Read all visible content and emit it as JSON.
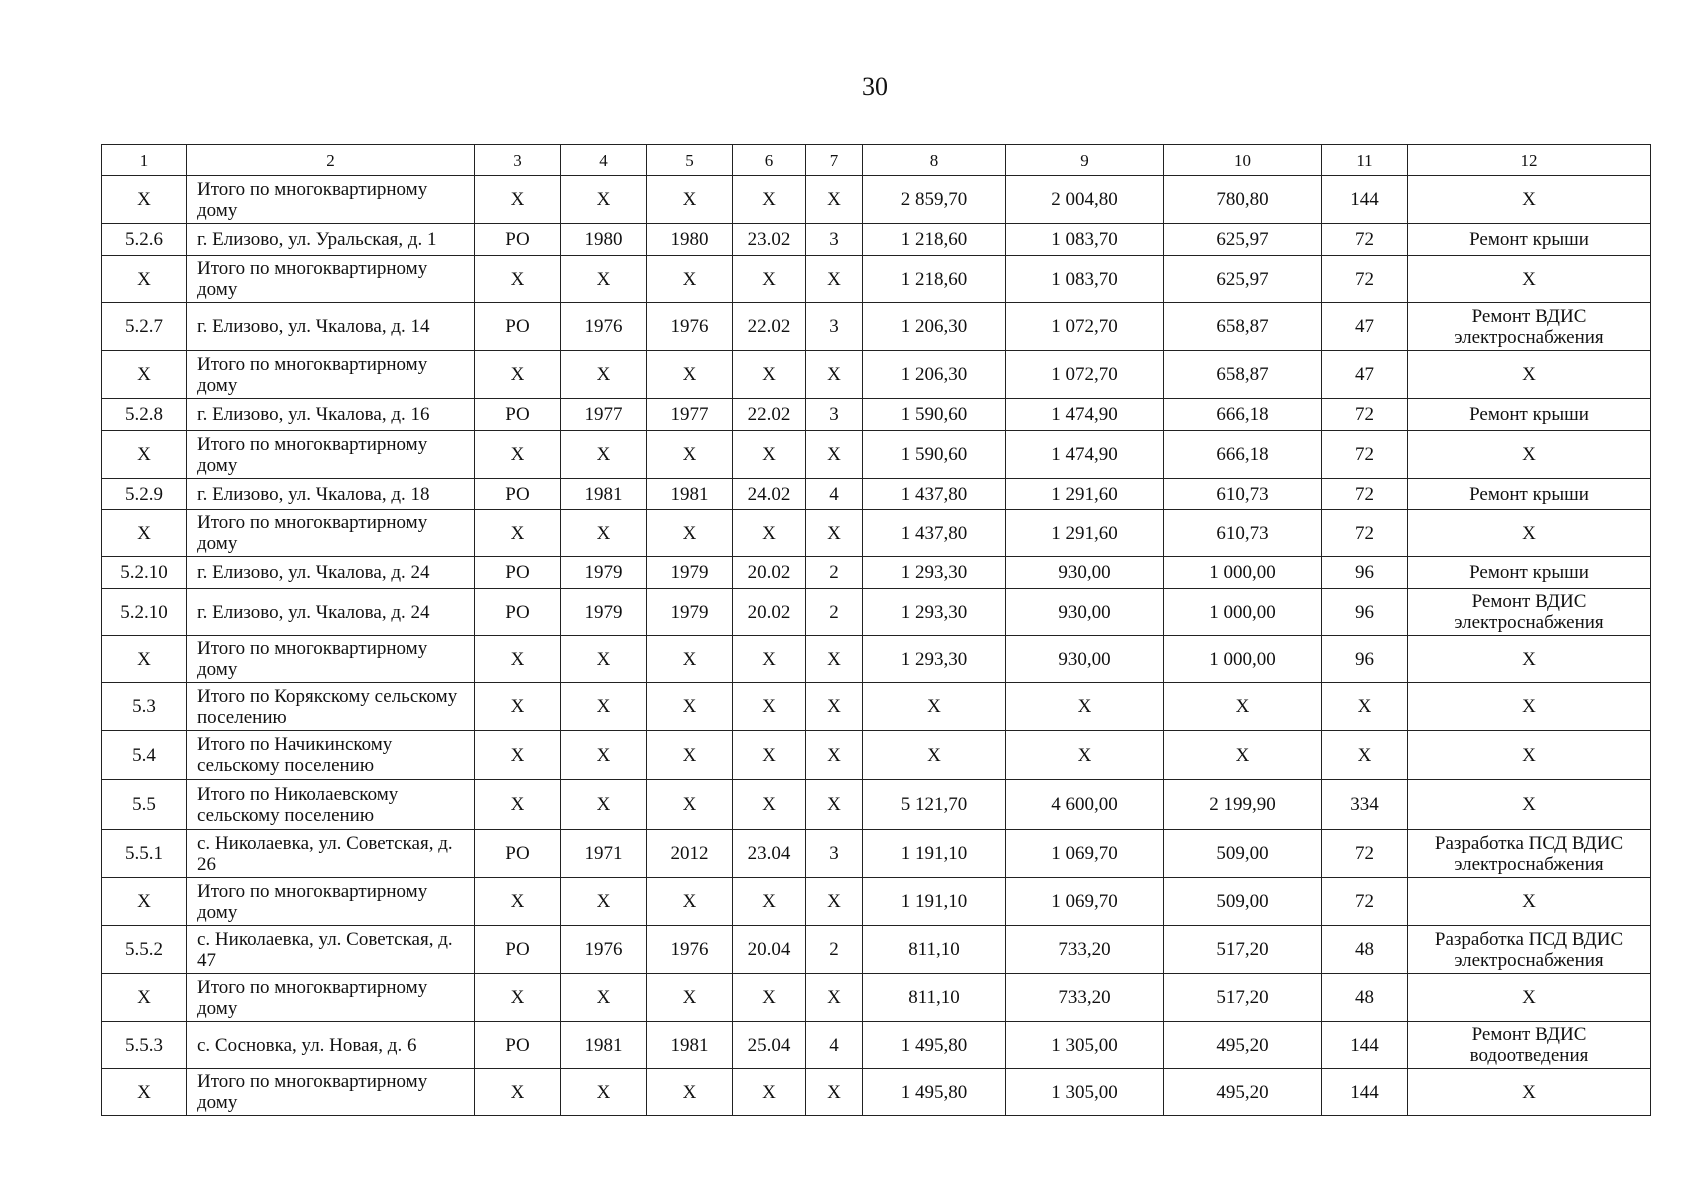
{
  "page_number": "30",
  "columns": [
    "1",
    "2",
    "3",
    "4",
    "5",
    "6",
    "7",
    "8",
    "9",
    "10",
    "11",
    "12"
  ],
  "rows": [
    [
      "Х",
      "Итого по многоквартирному дому",
      "Х",
      "Х",
      "Х",
      "Х",
      "Х",
      "2 859,70",
      "2 004,80",
      "780,80",
      "144",
      "Х"
    ],
    [
      "5.2.6",
      "г. Елизово, ул. Уральская, д. 1",
      "РО",
      "1980",
      "1980",
      "23.02",
      "3",
      "1 218,60",
      "1 083,70",
      "625,97",
      "72",
      "Ремонт крыши"
    ],
    [
      "Х",
      "Итого по многоквартирному дому",
      "Х",
      "Х",
      "Х",
      "Х",
      "Х",
      "1 218,60",
      "1 083,70",
      "625,97",
      "72",
      "Х"
    ],
    [
      "5.2.7",
      "г. Елизово, ул. Чкалова, д. 14",
      "РО",
      "1976",
      "1976",
      "22.02",
      "3",
      "1 206,30",
      "1 072,70",
      "658,87",
      "47",
      "Ремонт ВДИС электроснабжения"
    ],
    [
      "Х",
      "Итого по многоквартирному дому",
      "Х",
      "Х",
      "Х",
      "Х",
      "Х",
      "1 206,30",
      "1 072,70",
      "658,87",
      "47",
      "Х"
    ],
    [
      "5.2.8",
      "г. Елизово, ул. Чкалова, д. 16",
      "РО",
      "1977",
      "1977",
      "22.02",
      "3",
      "1 590,60",
      "1 474,90",
      "666,18",
      "72",
      "Ремонт крыши"
    ],
    [
      "Х",
      "Итого по многоквартирному дому",
      "Х",
      "Х",
      "Х",
      "Х",
      "Х",
      "1 590,60",
      "1 474,90",
      "666,18",
      "72",
      "Х"
    ],
    [
      "5.2.9",
      "г. Елизово, ул. Чкалова, д. 18",
      "РО",
      "1981",
      "1981",
      "24.02",
      "4",
      "1 437,80",
      "1 291,60",
      "610,73",
      "72",
      "Ремонт крыши"
    ],
    [
      "Х",
      "Итого по многоквартирному дому",
      "Х",
      "Х",
      "Х",
      "Х",
      "Х",
      "1 437,80",
      "1 291,60",
      "610,73",
      "72",
      "Х"
    ],
    [
      "5.2.10",
      "г. Елизово, ул. Чкалова, д. 24",
      "РО",
      "1979",
      "1979",
      "20.02",
      "2",
      "1 293,30",
      "930,00",
      "1 000,00",
      "96",
      "Ремонт крыши"
    ],
    [
      "5.2.10",
      "г. Елизово, ул. Чкалова, д. 24",
      "РО",
      "1979",
      "1979",
      "20.02",
      "2",
      "1 293,30",
      "930,00",
      "1 000,00",
      "96",
      "Ремонт ВДИС электроснабжения"
    ],
    [
      "Х",
      "Итого по многоквартирному дому",
      "Х",
      "Х",
      "Х",
      "Х",
      "Х",
      "1 293,30",
      "930,00",
      "1 000,00",
      "96",
      "Х"
    ],
    [
      "5.3",
      "Итого по Корякскому сельскому поселению",
      "Х",
      "Х",
      "Х",
      "Х",
      "Х",
      "Х",
      "Х",
      "Х",
      "Х",
      "Х"
    ],
    [
      "5.4",
      "Итого по Начикинскому сельскому поселению",
      "Х",
      "Х",
      "Х",
      "Х",
      "Х",
      "Х",
      "Х",
      "Х",
      "Х",
      "Х"
    ],
    [
      "5.5",
      "Итого по Николаевскому сельскому поселению",
      "Х",
      "Х",
      "Х",
      "Х",
      "Х",
      "5 121,70",
      "4 600,00",
      "2 199,90",
      "334",
      "Х"
    ],
    [
      "5.5.1",
      "с. Николаевка, ул. Советская, д. 26",
      "РО",
      "1971",
      "2012",
      "23.04",
      "3",
      "1 191,10",
      "1 069,70",
      "509,00",
      "72",
      "Разработка ПСД ВДИС электроснабжения"
    ],
    [
      "Х",
      "Итого по многоквартирному дому",
      "Х",
      "Х",
      "Х",
      "Х",
      "Х",
      "1 191,10",
      "1 069,70",
      "509,00",
      "72",
      "Х"
    ],
    [
      "5.5.2",
      "с. Николаевка, ул. Советская, д. 47",
      "РО",
      "1976",
      "1976",
      "20.04",
      "2",
      "811,10",
      "733,20",
      "517,20",
      "48",
      "Разработка ПСД ВДИС электроснабжения"
    ],
    [
      "Х",
      "Итого по многоквартирному дому",
      "Х",
      "Х",
      "Х",
      "Х",
      "Х",
      "811,10",
      "733,20",
      "517,20",
      "48",
      "Х"
    ],
    [
      "5.5.3",
      "с. Сосновка, ул. Новая, д. 6",
      "РО",
      "1981",
      "1981",
      "25.04",
      "4",
      "1 495,80",
      "1 305,00",
      "495,20",
      "144",
      "Ремонт ВДИС водоотведения"
    ],
    [
      "Х",
      "Итого по многоквартирному дому",
      "Х",
      "Х",
      "Х",
      "Х",
      "Х",
      "1 495,80",
      "1 305,00",
      "495,20",
      "144",
      "Х"
    ]
  ]
}
